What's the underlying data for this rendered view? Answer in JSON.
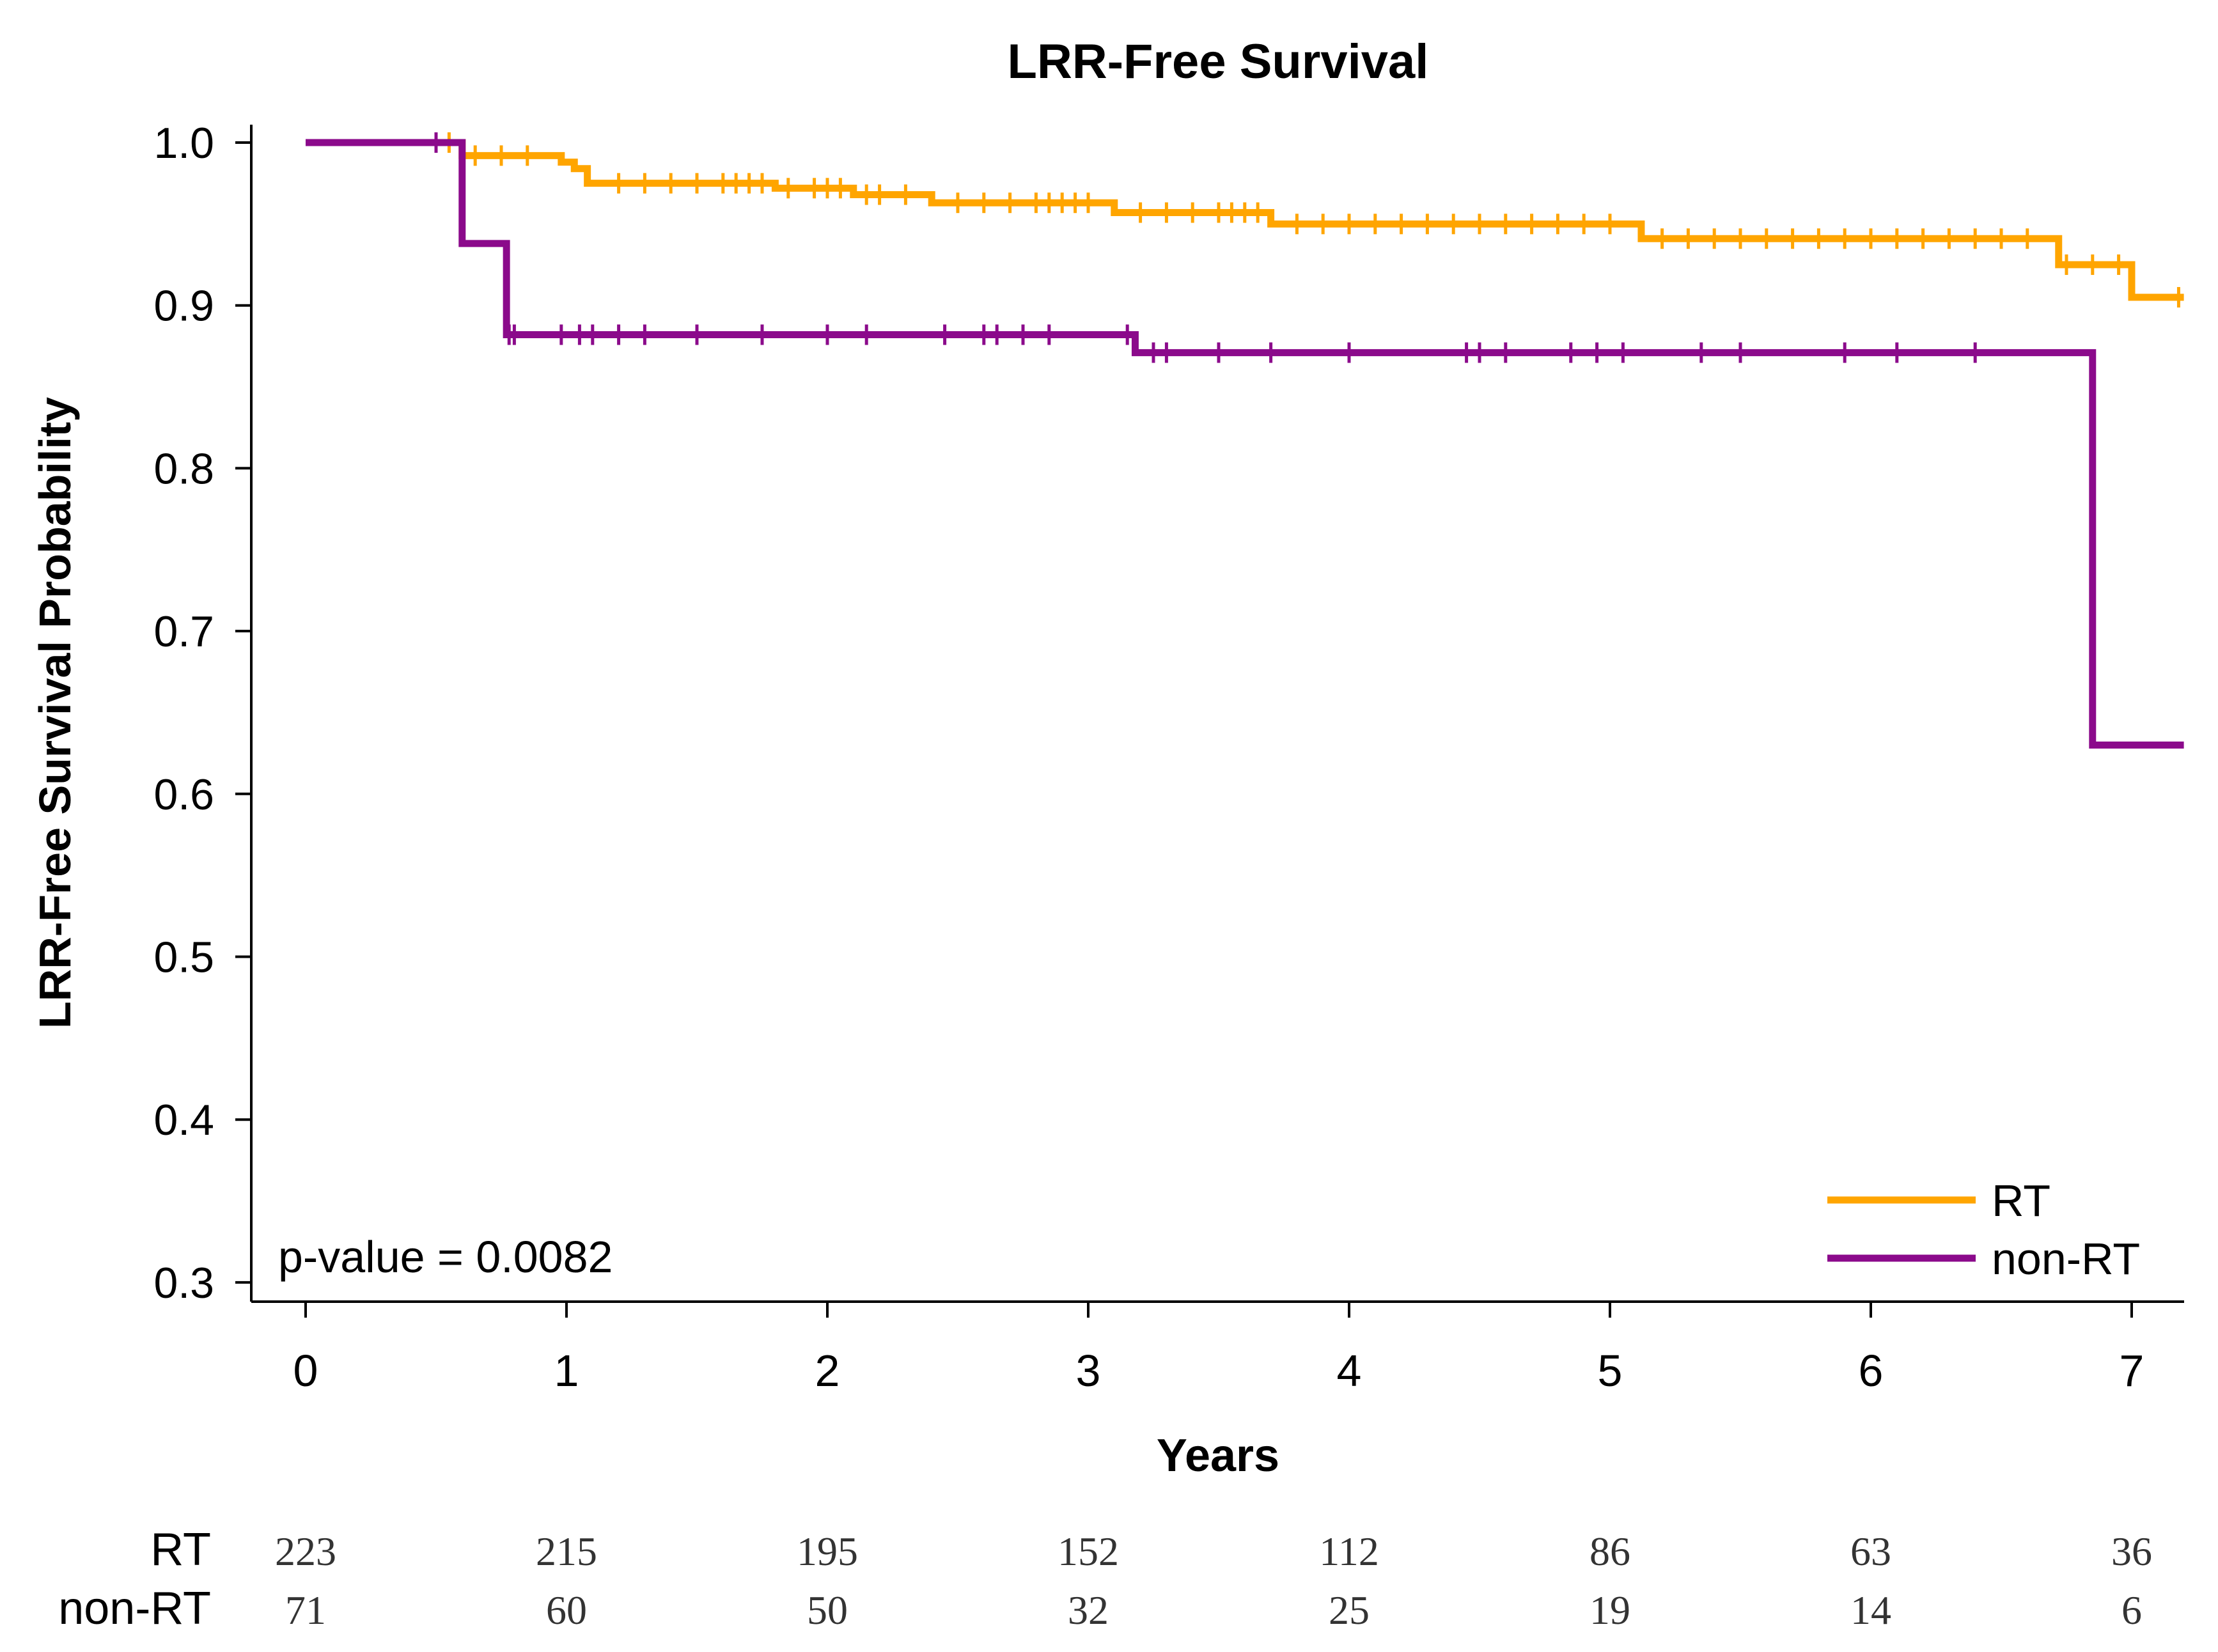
{
  "chart_data": {
    "type": "line",
    "title": "LRR-Free Survival",
    "xlabel": "Years",
    "ylabel": "LRR-Free Survival Probability",
    "xlim": [
      0,
      7.2
    ],
    "ylim": [
      0.3,
      1.0
    ],
    "x_ticks": [
      0,
      1,
      2,
      3,
      4,
      5,
      6,
      7
    ],
    "x_tick_labels": [
      "0",
      "1",
      "2",
      "3",
      "4",
      "5",
      "6",
      "7"
    ],
    "y_ticks": [
      0.3,
      0.4,
      0.5,
      0.6,
      0.7,
      0.8,
      0.9,
      1.0
    ],
    "y_tick_labels": [
      "0.3",
      "0.4",
      "0.5",
      "0.6",
      "0.7",
      "0.8",
      "0.9",
      "1.0"
    ],
    "grid": false,
    "legend_position": "bottom-right",
    "annotation": "p-value = 0.0082",
    "series": [
      {
        "name": "RT",
        "color": "#FFA500",
        "x": [
          0,
          0.6,
          0.98,
          1.03,
          1.08,
          1.8,
          2.1,
          2.4,
          3.1,
          3.7,
          5.12,
          6.72,
          7.0,
          7.2
        ],
        "values": [
          1.0,
          0.992,
          0.988,
          0.984,
          0.975,
          0.972,
          0.968,
          0.963,
          0.957,
          0.95,
          0.941,
          0.925,
          0.905,
          0.905
        ],
        "censor_x": [
          0.5,
          0.55,
          0.65,
          0.75,
          0.85,
          1.2,
          1.3,
          1.4,
          1.5,
          1.6,
          1.65,
          1.7,
          1.75,
          1.85,
          1.95,
          2.0,
          2.05,
          2.15,
          2.2,
          2.3,
          2.5,
          2.6,
          2.7,
          2.8,
          2.85,
          2.9,
          2.95,
          3.0,
          3.2,
          3.3,
          3.4,
          3.5,
          3.55,
          3.6,
          3.65,
          3.8,
          3.9,
          4.0,
          4.1,
          4.2,
          4.3,
          4.4,
          4.5,
          4.6,
          4.7,
          4.8,
          4.9,
          5.0,
          5.2,
          5.3,
          5.4,
          5.5,
          5.6,
          5.7,
          5.8,
          5.9,
          6.0,
          6.1,
          6.2,
          6.3,
          6.4,
          6.5,
          6.6,
          6.75,
          6.85,
          6.95,
          7.18
        ]
      },
      {
        "name": "non-RT",
        "color": "#8B0A8B",
        "x": [
          0,
          0.6,
          0.77,
          3.18,
          6.85,
          7.2
        ],
        "values": [
          1.0,
          0.938,
          0.882,
          0.871,
          0.63,
          0.63
        ],
        "censor_x": [
          0.5,
          0.78,
          0.8,
          0.98,
          1.05,
          1.1,
          1.2,
          1.3,
          1.5,
          1.75,
          2.0,
          2.15,
          2.45,
          2.6,
          2.65,
          2.75,
          2.85,
          3.15,
          3.25,
          3.3,
          3.5,
          3.7,
          4.0,
          4.45,
          4.5,
          4.6,
          4.85,
          4.95,
          5.05,
          5.35,
          5.5,
          5.9,
          6.1,
          6.4
        ]
      }
    ],
    "risk_table": {
      "x": [
        0,
        1,
        2,
        3,
        4,
        5,
        6,
        7
      ],
      "rows": [
        {
          "label": "RT",
          "values": [
            "223",
            "215",
            "195",
            "152",
            "112",
            "86",
            "63",
            "36"
          ]
        },
        {
          "label": "non-RT",
          "values": [
            "71",
            "60",
            "50",
            "32",
            "25",
            "19",
            "14",
            "6"
          ]
        }
      ]
    }
  }
}
